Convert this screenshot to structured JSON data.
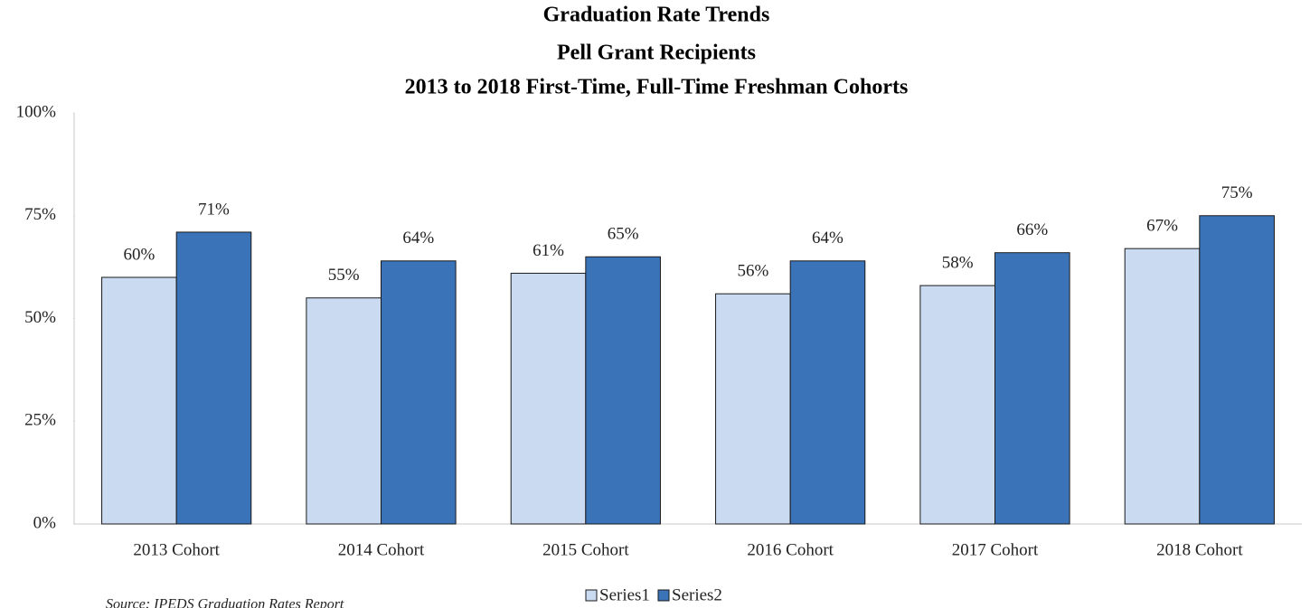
{
  "chart_data": {
    "type": "bar",
    "title": [
      "Graduation Rate Trends",
      "Pell Grant Recipients",
      "2013 to 2018 First-Time, Full-Time Freshman Cohorts"
    ],
    "categories": [
      "2013 Cohort",
      "2014 Cohort",
      "2015 Cohort",
      "2016 Cohort",
      "2017 Cohort",
      "2018 Cohort"
    ],
    "series": [
      {
        "name": "Series1",
        "color": "#c9daf1",
        "values": [
          60,
          55,
          61,
          56,
          58,
          67
        ],
        "value_labels": [
          "60%",
          "55%",
          "61%",
          "56%",
          "58%",
          "67%"
        ]
      },
      {
        "name": "Series2",
        "color": "#3a73b7",
        "values": [
          71,
          64,
          65,
          64,
          66,
          75
        ],
        "value_labels": [
          "71%",
          "64%",
          "65%",
          "64%",
          "66%",
          "75%"
        ]
      }
    ],
    "ylim": [
      0,
      100
    ],
    "yticks": [
      {
        "value": 0,
        "label": "0%"
      },
      {
        "value": 25,
        "label": "25%"
      },
      {
        "value": 50,
        "label": "50%"
      },
      {
        "value": 75,
        "label": "75%"
      },
      {
        "value": 100,
        "label": "100%"
      }
    ],
    "legend": "bottom",
    "source": "Source: IPEDS Graduation Rates Report"
  }
}
